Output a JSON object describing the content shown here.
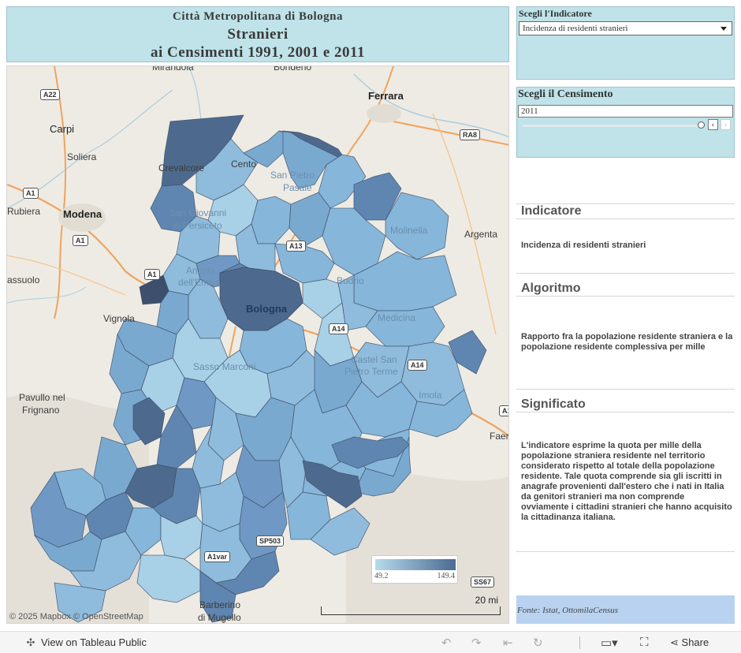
{
  "title": {
    "line1": "Città Metropolitana di Bologna",
    "line2": "Stranieri",
    "line3": "ai Censimenti 1991, 2001 e 2011"
  },
  "indicator_filter": {
    "label": "Scegli l'Indicatore",
    "selected": "Incidenza di residenti stranieri"
  },
  "census_filter": {
    "label": "Scegli il Censimento",
    "value": "2011",
    "prev_glyph": "‹",
    "next_glyph": "›"
  },
  "map": {
    "places": {
      "carpi": "Carpi",
      "soliera": "Soliera",
      "modena": "Modena",
      "rubiera": "Rubiera",
      "sassuolo": "assuolo",
      "vignola": "Vignola",
      "pavullo1": "Pavullo nel",
      "pavullo2": "Frignano",
      "ferrara": "Ferrara",
      "bondeno": "Bondeno",
      "mirandola": "Mirandola",
      "argenta": "Argenta",
      "faenza": "Faen",
      "barberino1": "Barberino",
      "barberino2": "di Mugello",
      "crevalcore": "Crevalcore",
      "cento": "Cento",
      "sanpietro1": "San Pietro",
      "sanpietro2": "Pasale",
      "sangiovanni1": "San Giovanni",
      "sangiovanni2": "in Persiceto",
      "molinella": "Molinella",
      "anzola1": "Anzola",
      "anzola2": "dell'Emilia",
      "budrio": "Budrio",
      "bologna": "Bologna",
      "medicina": "Medicina",
      "sassomarconi": "Sasso Marconi",
      "castelsanpietro1": "Castel San",
      "castelsanpietro2": "Pietro Terme",
      "imola": "Imola"
    },
    "roads": {
      "a22": "A22",
      "ra8": "RA8",
      "a1_a": "A1",
      "a1_b": "A1",
      "a1_c": "A1",
      "a13": "A13",
      "a14_a": "A14",
      "a14_b": "A14",
      "a14_c": "A1",
      "sp503": "SP503",
      "a1var": "A1var",
      "ss67": "SS67"
    },
    "attribution": "© 2025 Mapbox  © OpenStreetMap",
    "scale_label": "20 mi",
    "legend": {
      "min": "49.2",
      "max": "149.4"
    },
    "colors": {
      "low": "#b5dbec",
      "high": "#4a6a92"
    }
  },
  "sections": {
    "indicatore_title": "Indicatore",
    "indicatore_body": "Incidenza di residenti stranieri",
    "algoritmo_title": "Algoritmo",
    "algoritmo_body": "Rapporto fra la popolazione residente straniera e la popolazione residente complessiva per mille",
    "significato_title": "Significato",
    "significato_body": "L'indicatore esprime la quota per mille della popolazione straniera residente nel territorio considerato rispetto al totale della popolazione residente. Tale quota comprende sia gli iscritti in anagrafe provenienti dall'estero che i nati in Italia da genitori stranieri ma non comprende ovviamente i cittadini stranieri che hanno acquisito la cittadinanza italiana."
  },
  "source": "Fonte:  Istat,  OttomilaCensus",
  "toolbar": {
    "view_label": "View on Tableau Public",
    "share_label": "Share",
    "icons": [
      "undo-icon",
      "redo-icon",
      "revert-icon",
      "refresh-icon",
      "device-preview-icon",
      "fullscreen-icon",
      "share-icon"
    ]
  }
}
